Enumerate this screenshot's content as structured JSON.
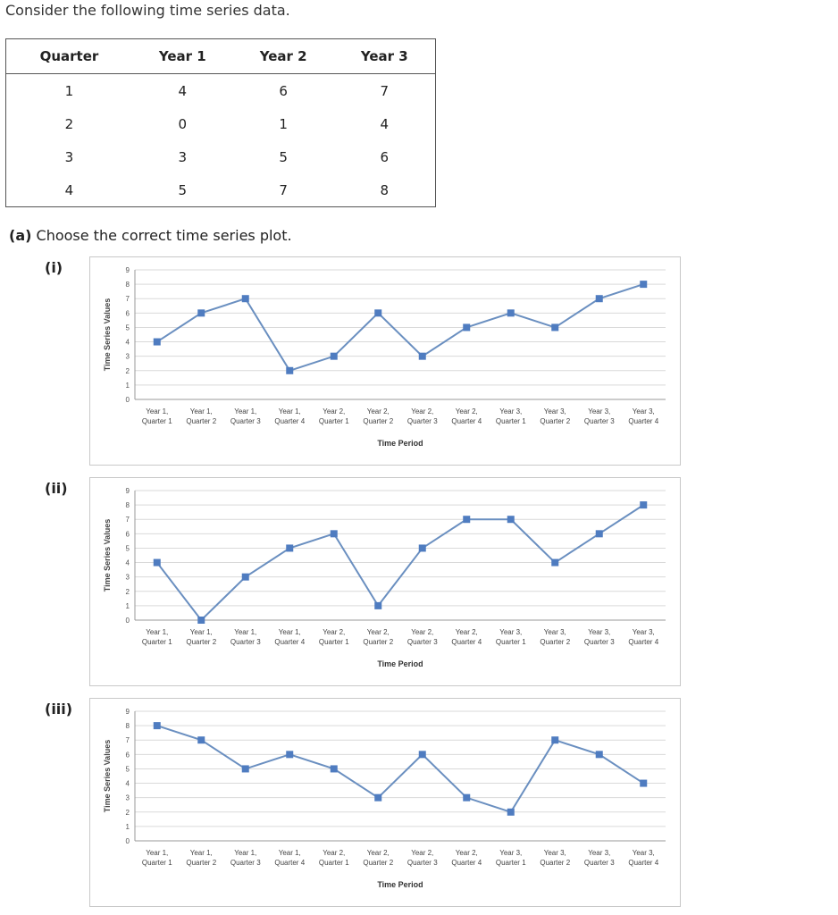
{
  "intro": "Consider the following time series data.",
  "table": {
    "headers": [
      "Quarter",
      "Year 1",
      "Year 2",
      "Year 3"
    ],
    "rows": [
      [
        "1",
        "4",
        "6",
        "7"
      ],
      [
        "2",
        "0",
        "1",
        "4"
      ],
      [
        "3",
        "3",
        "5",
        "6"
      ],
      [
        "4",
        "5",
        "7",
        "8"
      ]
    ]
  },
  "part_a": {
    "label": "(a)",
    "text": "Choose the correct time series plot."
  },
  "colors": {
    "series": "#6a8fc0",
    "marker": "#4f7cc0",
    "grid": "#d9d9d9"
  },
  "chart_data": [
    {
      "option": "(i)",
      "type": "line",
      "categories": [
        [
          "Year 1,",
          "Quarter 1"
        ],
        [
          "Year 1,",
          "Quarter 2"
        ],
        [
          "Year 1,",
          "Quarter 3"
        ],
        [
          "Year 1,",
          "Quarter 4"
        ],
        [
          "Year 2,",
          "Quarter 1"
        ],
        [
          "Year 2,",
          "Quarter 2"
        ],
        [
          "Year 2,",
          "Quarter 3"
        ],
        [
          "Year 2,",
          "Quarter 4"
        ],
        [
          "Year 3,",
          "Quarter 1"
        ],
        [
          "Year 3,",
          "Quarter 2"
        ],
        [
          "Year 3,",
          "Quarter 3"
        ],
        [
          "Year 3,",
          "Quarter 4"
        ]
      ],
      "values": [
        4,
        6,
        7,
        2,
        3,
        6,
        3,
        5,
        6,
        5,
        7,
        8
      ],
      "xlabel": "Time Period",
      "ylabel": "Time Series Values",
      "ylim": [
        0,
        9
      ],
      "yticks": [
        0,
        1,
        2,
        3,
        4,
        5,
        6,
        7,
        8,
        9
      ],
      "grid": true
    },
    {
      "option": "(ii)",
      "type": "line",
      "categories": [
        [
          "Year 1,",
          "Quarter 1"
        ],
        [
          "Year 1,",
          "Quarter 2"
        ],
        [
          "Year 1,",
          "Quarter 3"
        ],
        [
          "Year 1,",
          "Quarter 4"
        ],
        [
          "Year 2,",
          "Quarter 1"
        ],
        [
          "Year 2,",
          "Quarter 2"
        ],
        [
          "Year 2,",
          "Quarter 3"
        ],
        [
          "Year 2,",
          "Quarter 4"
        ],
        [
          "Year 3,",
          "Quarter 1"
        ],
        [
          "Year 3,",
          "Quarter 2"
        ],
        [
          "Year 3,",
          "Quarter 3"
        ],
        [
          "Year 3,",
          "Quarter 4"
        ]
      ],
      "values": [
        4,
        0,
        3,
        5,
        6,
        1,
        5,
        7,
        7,
        4,
        6,
        8
      ],
      "xlabel": "Time Period",
      "ylabel": "Time Series Values",
      "ylim": [
        0,
        9
      ],
      "yticks": [
        0,
        1,
        2,
        3,
        4,
        5,
        6,
        7,
        8,
        9
      ],
      "grid": true
    },
    {
      "option": "(iii)",
      "type": "line",
      "categories": [
        [
          "Year 1,",
          "Quarter 1"
        ],
        [
          "Year 1,",
          "Quarter 2"
        ],
        [
          "Year 1,",
          "Quarter 3"
        ],
        [
          "Year 1,",
          "Quarter 4"
        ],
        [
          "Year 2,",
          "Quarter 1"
        ],
        [
          "Year 2,",
          "Quarter 2"
        ],
        [
          "Year 2,",
          "Quarter 3"
        ],
        [
          "Year 2,",
          "Quarter 4"
        ],
        [
          "Year 3,",
          "Quarter 1"
        ],
        [
          "Year 3,",
          "Quarter 2"
        ],
        [
          "Year 3,",
          "Quarter 3"
        ],
        [
          "Year 3,",
          "Quarter 4"
        ]
      ],
      "values": [
        8,
        7,
        5,
        6,
        5,
        3,
        6,
        3,
        2,
        7,
        6,
        4
      ],
      "xlabel": "Time Period",
      "ylabel": "Time Series Values",
      "ylim": [
        0,
        9
      ],
      "yticks": [
        0,
        1,
        2,
        3,
        4,
        5,
        6,
        7,
        8,
        9
      ],
      "grid": true
    }
  ]
}
